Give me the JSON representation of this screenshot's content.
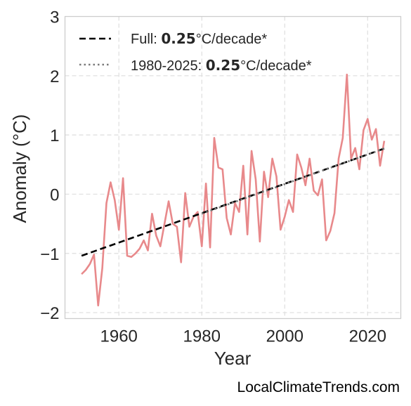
{
  "chart_data": {
    "type": "line",
    "xlabel": "Year",
    "ylabel": "Anomaly (°C)",
    "xlim": [
      1947,
      2028
    ],
    "ylim": [
      -2.1,
      3.0
    ],
    "x_ticks": [
      1960,
      1980,
      2000,
      2020
    ],
    "y_ticks": [
      -2,
      -1,
      0,
      1,
      2,
      3
    ],
    "y_tick_labels": [
      "−2",
      "−1",
      "0",
      "1",
      "2",
      "3"
    ],
    "grid": true,
    "legend_position": "top-left",
    "series": [
      {
        "style": "solid",
        "color": "#e8898b",
        "x": [
          1951,
          1952,
          1953,
          1954,
          1955,
          1956,
          1957,
          1958,
          1959,
          1960,
          1961,
          1962,
          1963,
          1964,
          1965,
          1966,
          1967,
          1968,
          1969,
          1970,
          1971,
          1972,
          1973,
          1974,
          1975,
          1976,
          1977,
          1978,
          1979,
          1980,
          1981,
          1982,
          1983,
          1984,
          1985,
          1986,
          1987,
          1988,
          1989,
          1990,
          1991,
          1992,
          1993,
          1994,
          1995,
          1996,
          1997,
          1998,
          1999,
          2000,
          2001,
          2002,
          2003,
          2004,
          2005,
          2006,
          2007,
          2008,
          2009,
          2010,
          2011,
          2012,
          2013,
          2014,
          2015,
          2016,
          2017,
          2018,
          2019,
          2020,
          2021,
          2022,
          2023,
          2024
        ],
        "y": [
          -1.35,
          -1.28,
          -1.18,
          -1.02,
          -1.88,
          -1.25,
          -0.15,
          0.2,
          -0.1,
          -0.6,
          0.27,
          -1.04,
          -1.06,
          -1.0,
          -0.92,
          -0.78,
          -0.95,
          -0.33,
          -0.7,
          -0.88,
          -0.5,
          -0.12,
          -0.5,
          -0.55,
          -1.15,
          0.02,
          -0.55,
          -0.38,
          -0.3,
          -0.88,
          0.18,
          -0.9,
          0.95,
          0.45,
          0.42,
          -0.4,
          -0.68,
          -0.15,
          -0.3,
          0.48,
          -0.68,
          0.73,
          0.25,
          -0.8,
          0.38,
          -0.05,
          0.6,
          0.3,
          -0.6,
          -0.38,
          -0.1,
          -0.3,
          0.67,
          0.45,
          0.15,
          0.6,
          0.06,
          -0.02,
          0.25,
          -0.78,
          -0.62,
          -0.32,
          0.6,
          0.95,
          2.02,
          0.6,
          0.78,
          0.42,
          1.08,
          1.27,
          0.92,
          1.1,
          0.48,
          0.9
        ]
      },
      {
        "style": "dashed",
        "color": "#000000",
        "x": [
          1951,
          2024
        ],
        "y": [
          -1.04,
          0.77
        ]
      },
      {
        "style": "dotted",
        "color": "#7a7a7a",
        "x": [
          1980,
          2024
        ],
        "y": [
          -0.33,
          0.77
        ]
      }
    ],
    "legend": [
      {
        "style": "dashed",
        "prefix": "Full: ",
        "bold": "0.25",
        "suffix": "°C/decade*"
      },
      {
        "style": "dotted",
        "prefix": "1980-2025: ",
        "bold": "0.25",
        "suffix": "°C/decade*"
      }
    ]
  },
  "credit": "LocalClimateTrends.com"
}
